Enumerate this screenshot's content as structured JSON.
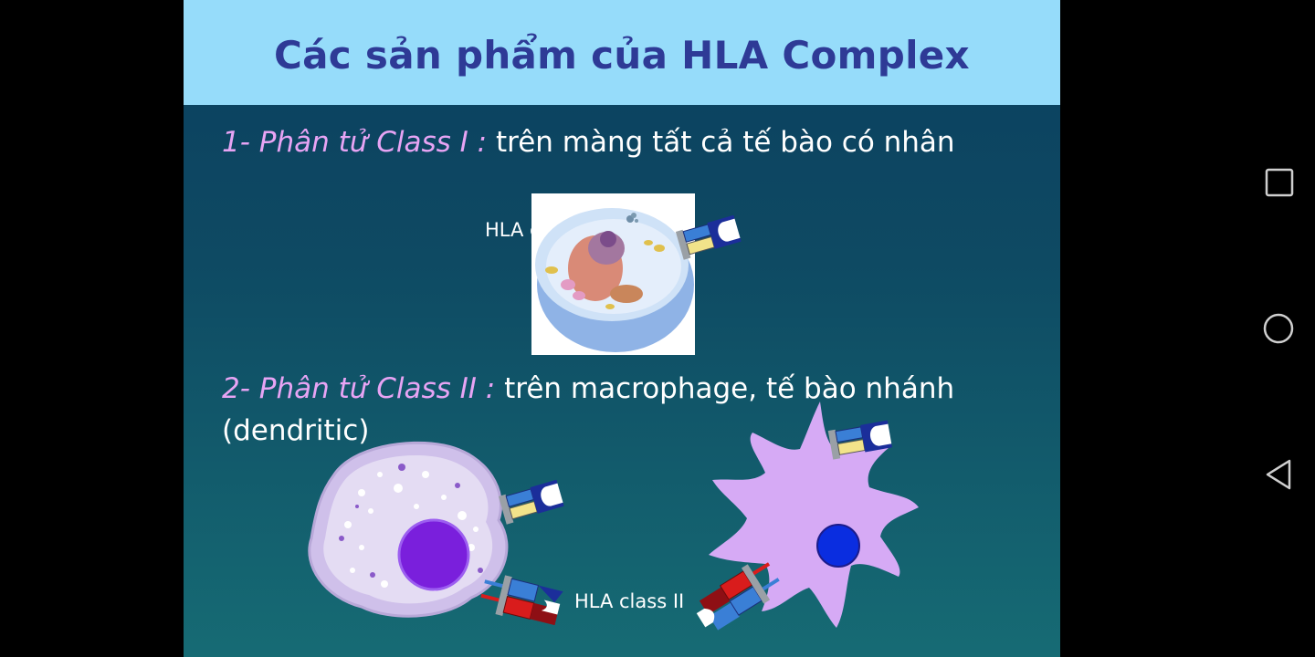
{
  "slide": {
    "title": "Các sản phẩm của HLA Complex",
    "class1": {
      "label": "1- Phân tử Class I :",
      "text": " trên màng tất cả tế bào có nhân"
    },
    "class1_fig_label": "HLA c",
    "class2": {
      "label": "2- Phân tử Class II :",
      "text": " trên macrophage, tế bào nhánh",
      "text2": "(dendritic)"
    },
    "class2_fig_label": "HLA class II"
  },
  "navbar": {
    "recents_icon": "square-recents-icon",
    "home_icon": "circle-home-icon",
    "back_icon": "triangle-back-icon"
  },
  "colors": {
    "title_bg": "#96dcfa",
    "title_text": "#2e3a96",
    "label_pink": "#e7a4f4"
  }
}
